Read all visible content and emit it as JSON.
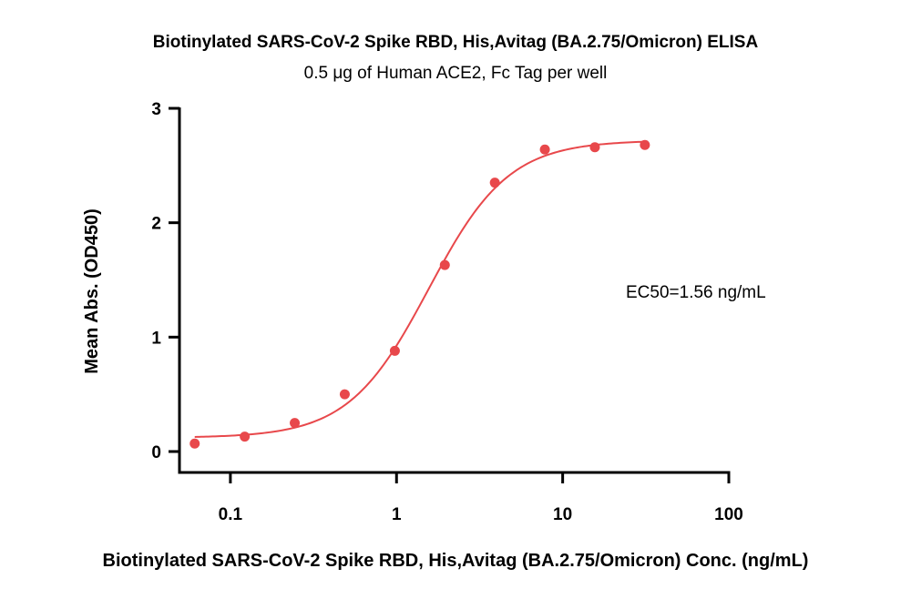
{
  "chart_data": {
    "type": "scatter",
    "title": "Biotinylated SARS-CoV-2 Spike RBD, His,Avitag (BA.2.75/Omicron) ELISA",
    "subtitle": "0.5 μg of Human ACE2, Fc Tag per well",
    "xlabel": "Biotinylated SARS-CoV-2 Spike RBD, His,Avitag (BA.2.75/Omicron) Conc. (ng/mL)",
    "ylabel": "Mean Abs. (OD450)",
    "xscale": "log",
    "xlim": [
      0.05,
      100
    ],
    "ylim": [
      0,
      3
    ],
    "xticks": [
      0.1,
      1,
      10,
      100
    ],
    "xtick_labels": [
      "0.1",
      "1",
      "10",
      "100"
    ],
    "yticks": [
      0,
      1,
      2,
      3
    ],
    "ytick_labels": [
      "0",
      "1",
      "2",
      "3"
    ],
    "grid": false,
    "annotation": "EC50=1.56 ng/mL",
    "color": "#e8484b",
    "series": [
      {
        "x": [
          0.061,
          0.122,
          0.244,
          0.488,
          0.977,
          1.953,
          3.906,
          7.813,
          15.625,
          31.25
        ],
        "values": [
          0.07,
          0.13,
          0.25,
          0.5,
          0.88,
          1.63,
          2.35,
          2.64,
          2.66,
          2.68
        ]
      }
    ],
    "fit": {
      "type": "4PL",
      "bottom": 0.12,
      "top": 2.72,
      "ec50": 1.56,
      "hill": 1.8
    }
  }
}
